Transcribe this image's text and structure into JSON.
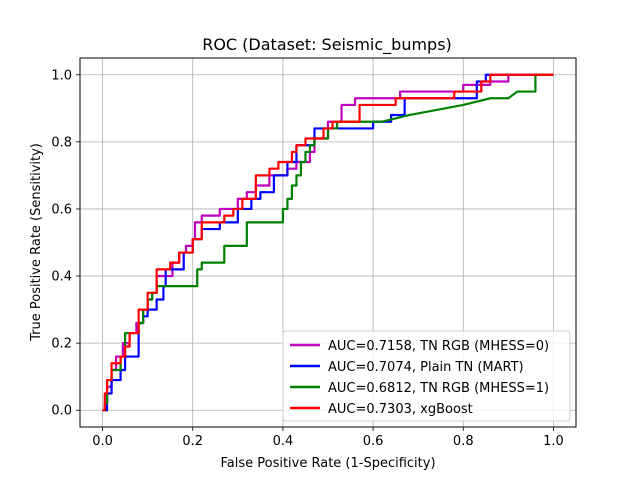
{
  "chart_data": {
    "type": "line",
    "title": "ROC (Dataset: Seismic_bumps)",
    "xlabel": "False Positive Rate (1-Specificity)",
    "ylabel": "True Positive Rate (Sensitivity)",
    "xlim": [
      -0.05,
      1.05
    ],
    "ylim": [
      -0.05,
      1.05
    ],
    "xticks": [
      "0.0",
      "0.2",
      "0.4",
      "0.6",
      "0.8",
      "1.0"
    ],
    "yticks": [
      "0.0",
      "0.2",
      "0.4",
      "0.6",
      "0.8",
      "1.0"
    ],
    "grid": true,
    "legend_position": "lower-right",
    "series": [
      {
        "name": "AUC=0.7158, TN RGB (MHESS=0)",
        "color": "#bf00bf",
        "x": [
          0,
          0.005,
          0.005,
          0.01,
          0.01,
          0.02,
          0.02,
          0.03,
          0.03,
          0.045,
          0.045,
          0.06,
          0.06,
          0.075,
          0.075,
          0.09,
          0.09,
          0.1,
          0.1,
          0.11,
          0.11,
          0.12,
          0.12,
          0.155,
          0.155,
          0.17,
          0.17,
          0.185,
          0.185,
          0.2,
          0.2,
          0.205,
          0.205,
          0.22,
          0.22,
          0.26,
          0.26,
          0.3,
          0.3,
          0.32,
          0.32,
          0.34,
          0.34,
          0.37,
          0.37,
          0.41,
          0.41,
          0.43,
          0.43,
          0.46,
          0.46,
          0.47,
          0.47,
          0.5,
          0.5,
          0.53,
          0.53,
          0.56,
          0.56,
          0.66,
          0.66,
          0.8,
          0.8,
          0.86,
          0.86,
          0.9,
          0.9,
          0.92,
          1.0
        ],
        "y": [
          0,
          0,
          0.02,
          0.02,
          0.07,
          0.07,
          0.12,
          0.12,
          0.16,
          0.16,
          0.2,
          0.2,
          0.23,
          0.23,
          0.26,
          0.26,
          0.3,
          0.3,
          0.33,
          0.33,
          0.35,
          0.35,
          0.4,
          0.4,
          0.44,
          0.44,
          0.47,
          0.47,
          0.49,
          0.49,
          0.51,
          0.51,
          0.56,
          0.56,
          0.58,
          0.58,
          0.6,
          0.6,
          0.63,
          0.63,
          0.65,
          0.65,
          0.67,
          0.67,
          0.7,
          0.7,
          0.72,
          0.72,
          0.74,
          0.74,
          0.77,
          0.77,
          0.81,
          0.81,
          0.86,
          0.86,
          0.91,
          0.91,
          0.93,
          0.93,
          0.95,
          0.95,
          0.97,
          0.97,
          0.98,
          0.98,
          1.0,
          1.0,
          1.0
        ]
      },
      {
        "name": "AUC=0.7074, Plain TN (MART)",
        "color": "#0000ff",
        "x": [
          0,
          0.01,
          0.01,
          0.02,
          0.02,
          0.04,
          0.04,
          0.05,
          0.05,
          0.08,
          0.08,
          0.09,
          0.09,
          0.1,
          0.1,
          0.12,
          0.12,
          0.135,
          0.135,
          0.14,
          0.14,
          0.18,
          0.18,
          0.2,
          0.2,
          0.22,
          0.22,
          0.26,
          0.26,
          0.3,
          0.3,
          0.33,
          0.33,
          0.35,
          0.35,
          0.38,
          0.38,
          0.41,
          0.41,
          0.43,
          0.43,
          0.47,
          0.47,
          0.6,
          0.6,
          0.64,
          0.64,
          0.67,
          0.67,
          0.83,
          0.83,
          0.85,
          0.85,
          0.87,
          0.87,
          1.0
        ],
        "y": [
          0,
          0,
          0.05,
          0.05,
          0.09,
          0.09,
          0.12,
          0.12,
          0.16,
          0.16,
          0.26,
          0.26,
          0.28,
          0.28,
          0.3,
          0.3,
          0.33,
          0.33,
          0.37,
          0.37,
          0.42,
          0.42,
          0.47,
          0.47,
          0.51,
          0.51,
          0.54,
          0.54,
          0.56,
          0.56,
          0.6,
          0.6,
          0.63,
          0.63,
          0.65,
          0.65,
          0.7,
          0.7,
          0.74,
          0.74,
          0.79,
          0.79,
          0.84,
          0.84,
          0.86,
          0.86,
          0.88,
          0.88,
          0.93,
          0.93,
          0.98,
          0.98,
          1.0,
          1.0,
          1.0,
          1.0
        ]
      },
      {
        "name": "AUC=0.6812, TN RGB (MHESS=1)",
        "color": "#008000",
        "x": [
          0,
          0.005,
          0.005,
          0.01,
          0.01,
          0.02,
          0.02,
          0.04,
          0.04,
          0.05,
          0.05,
          0.08,
          0.08,
          0.09,
          0.09,
          0.1,
          0.1,
          0.11,
          0.11,
          0.12,
          0.12,
          0.21,
          0.21,
          0.22,
          0.22,
          0.27,
          0.27,
          0.32,
          0.32,
          0.4,
          0.4,
          0.41,
          0.41,
          0.42,
          0.42,
          0.43,
          0.43,
          0.44,
          0.44,
          0.45,
          0.45,
          0.46,
          0.46,
          0.47,
          0.47,
          0.5,
          0.5,
          0.52,
          0.52,
          0.54,
          0.54,
          0.62,
          0.68,
          0.8,
          0.86,
          0.9,
          0.92,
          0.96,
          0.96,
          1.0
        ],
        "y": [
          0,
          0,
          0.02,
          0.02,
          0.09,
          0.09,
          0.12,
          0.12,
          0.16,
          0.16,
          0.23,
          0.23,
          0.26,
          0.26,
          0.3,
          0.3,
          0.33,
          0.33,
          0.35,
          0.35,
          0.37,
          0.37,
          0.42,
          0.42,
          0.44,
          0.44,
          0.49,
          0.49,
          0.56,
          0.56,
          0.6,
          0.6,
          0.63,
          0.63,
          0.67,
          0.67,
          0.7,
          0.7,
          0.74,
          0.74,
          0.77,
          0.77,
          0.79,
          0.79,
          0.81,
          0.81,
          0.84,
          0.84,
          0.86,
          0.86,
          0.86,
          0.86,
          0.88,
          0.91,
          0.93,
          0.93,
          0.95,
          0.95,
          1.0,
          1.0
        ]
      },
      {
        "name": "AUC=0.7303, xgBoost",
        "color": "#ff0000",
        "x": [
          0,
          0.005,
          0.005,
          0.01,
          0.01,
          0.02,
          0.02,
          0.04,
          0.04,
          0.05,
          0.05,
          0.06,
          0.06,
          0.08,
          0.08,
          0.1,
          0.1,
          0.12,
          0.12,
          0.15,
          0.15,
          0.17,
          0.17,
          0.2,
          0.2,
          0.22,
          0.22,
          0.27,
          0.27,
          0.29,
          0.29,
          0.31,
          0.31,
          0.34,
          0.34,
          0.37,
          0.37,
          0.39,
          0.39,
          0.42,
          0.42,
          0.43,
          0.43,
          0.45,
          0.45,
          0.49,
          0.49,
          0.51,
          0.51,
          0.57,
          0.57,
          0.65,
          0.65,
          0.78,
          0.78,
          0.84,
          0.84,
          0.86,
          0.86,
          0.9,
          0.9,
          1.0
        ],
        "y": [
          0,
          0,
          0.05,
          0.05,
          0.09,
          0.09,
          0.14,
          0.14,
          0.16,
          0.16,
          0.19,
          0.19,
          0.23,
          0.23,
          0.3,
          0.3,
          0.35,
          0.35,
          0.42,
          0.42,
          0.44,
          0.44,
          0.47,
          0.47,
          0.51,
          0.51,
          0.56,
          0.56,
          0.58,
          0.58,
          0.6,
          0.6,
          0.63,
          0.63,
          0.7,
          0.7,
          0.72,
          0.72,
          0.74,
          0.74,
          0.77,
          0.77,
          0.79,
          0.79,
          0.81,
          0.81,
          0.84,
          0.84,
          0.86,
          0.86,
          0.91,
          0.91,
          0.93,
          0.93,
          0.95,
          0.95,
          0.98,
          0.98,
          1.0,
          1.0,
          1.0,
          1.0
        ]
      }
    ]
  }
}
